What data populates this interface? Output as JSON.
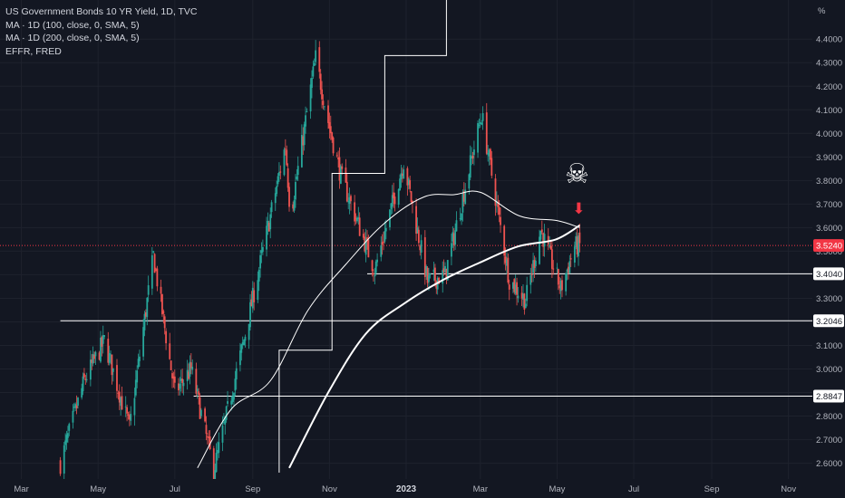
{
  "legend": {
    "title": "US Government Bonds 10 YR Yield, 1D, TVC",
    "ma100": "MA · 1D (100, close, 0, SMA, 5)",
    "ma200": "MA · 1D (200, close, 0, SMA, 5)",
    "effr": "EFFR, FRED"
  },
  "colors": {
    "background": "#131722",
    "up": "#26a69a",
    "down": "#ef5350",
    "line": "#ffffff",
    "grid": "#1e222d",
    "axis_text": "#b2b5be",
    "price_tag": "#f23645",
    "arrow": "#f23645"
  },
  "annotations": {
    "skull": "☠",
    "arrow": "⬇"
  },
  "chart_data": {
    "type": "candlestick",
    "title": "US Government Bonds 10 YR Yield, 1D, TVC",
    "y_unit": "%",
    "ylim": [
      2.56,
      4.52
    ],
    "x_range": [
      "2022-02-12",
      "2023-11-20"
    ],
    "x_ticks": [
      {
        "date": "2022-03-01",
        "label": "Mar"
      },
      {
        "date": "2022-05-01",
        "label": "May"
      },
      {
        "date": "2022-07-01",
        "label": "Jul"
      },
      {
        "date": "2022-09-01",
        "label": "Sep"
      },
      {
        "date": "2022-11-01",
        "label": "Nov"
      },
      {
        "date": "2023-01-01",
        "label": "2023",
        "bold": true
      },
      {
        "date": "2023-03-01",
        "label": "Mar"
      },
      {
        "date": "2023-05-01",
        "label": "May"
      },
      {
        "date": "2023-07-01",
        "label": "Jul"
      },
      {
        "date": "2023-09-01",
        "label": "Sep"
      },
      {
        "date": "2023-11-01",
        "label": "Nov"
      }
    ],
    "y_ticks": [
      {
        "value": 2.6,
        "label": "2.6000"
      },
      {
        "value": 2.7,
        "label": "2.7000"
      },
      {
        "value": 2.8,
        "label": "2.8000"
      },
      {
        "value": 2.9,
        "label": "2.9000"
      },
      {
        "value": 3.0,
        "label": "3.0000"
      },
      {
        "value": 3.1,
        "label": "3.1000"
      },
      {
        "value": 3.2,
        "label": "3.2000"
      },
      {
        "value": 3.3,
        "label": "3.3000"
      },
      {
        "value": 3.4,
        "label": "3.4000"
      },
      {
        "value": 3.5,
        "label": "3.5000"
      },
      {
        "value": 3.6,
        "label": "3.6000"
      },
      {
        "value": 3.7,
        "label": "3.7000"
      },
      {
        "value": 3.8,
        "label": "3.8000"
      },
      {
        "value": 3.9,
        "label": "3.9000"
      },
      {
        "value": 4.0,
        "label": "4.0000"
      },
      {
        "value": 4.1,
        "label": "4.1000"
      },
      {
        "value": 4.2,
        "label": "4.2000"
      },
      {
        "value": 4.3,
        "label": "4.3000"
      },
      {
        "value": 4.4,
        "label": "4.4000"
      }
    ],
    "y_axis_unit_label": "%",
    "last_price": {
      "value": 3.524,
      "label": "3.5240"
    },
    "price_path": [
      {
        "date": "2022-04-01",
        "value": 2.6
      },
      {
        "date": "2022-04-20",
        "value": 2.95
      },
      {
        "date": "2022-05-06",
        "value": 3.12
      },
      {
        "date": "2022-05-26",
        "value": 2.75
      },
      {
        "date": "2022-06-14",
        "value": 3.48
      },
      {
        "date": "2022-07-01",
        "value": 2.9
      },
      {
        "date": "2022-07-14",
        "value": 3.0
      },
      {
        "date": "2022-08-01",
        "value": 2.57
      },
      {
        "date": "2022-08-24",
        "value": 3.1
      },
      {
        "date": "2022-09-27",
        "value": 3.95
      },
      {
        "date": "2022-10-01",
        "value": 3.65
      },
      {
        "date": "2022-10-21",
        "value": 4.32
      },
      {
        "date": "2022-10-31",
        "value": 4.05
      },
      {
        "date": "2022-11-10",
        "value": 3.82
      },
      {
        "date": "2022-12-07",
        "value": 3.42
      },
      {
        "date": "2022-12-30",
        "value": 3.88
      },
      {
        "date": "2023-01-18",
        "value": 3.37
      },
      {
        "date": "2023-02-01",
        "value": 3.4
      },
      {
        "date": "2023-03-02",
        "value": 4.08
      },
      {
        "date": "2023-03-24",
        "value": 3.38
      },
      {
        "date": "2023-04-06",
        "value": 3.29
      },
      {
        "date": "2023-04-18",
        "value": 3.59
      },
      {
        "date": "2023-05-04",
        "value": 3.34
      },
      {
        "date": "2023-05-15",
        "value": 3.52
      },
      {
        "date": "2023-05-19",
        "value": 3.524
      }
    ],
    "ma100_path": [
      {
        "date": "2022-07-19",
        "value": 2.58
      },
      {
        "date": "2022-08-15",
        "value": 2.83
      },
      {
        "date": "2022-09-15",
        "value": 2.95
      },
      {
        "date": "2022-10-15",
        "value": 3.25
      },
      {
        "date": "2022-11-15",
        "value": 3.45
      },
      {
        "date": "2022-12-15",
        "value": 3.62
      },
      {
        "date": "2023-01-15",
        "value": 3.73
      },
      {
        "date": "2023-02-08",
        "value": 3.74
      },
      {
        "date": "2023-03-01",
        "value": 3.75
      },
      {
        "date": "2023-04-01",
        "value": 3.65
      },
      {
        "date": "2023-05-01",
        "value": 3.63
      },
      {
        "date": "2023-05-19",
        "value": 3.6
      }
    ],
    "ma200_path": [
      {
        "date": "2022-09-30",
        "value": 2.58
      },
      {
        "date": "2022-10-31",
        "value": 2.9
      },
      {
        "date": "2022-11-30",
        "value": 3.15
      },
      {
        "date": "2022-12-31",
        "value": 3.28
      },
      {
        "date": "2023-01-31",
        "value": 3.38
      },
      {
        "date": "2023-02-28",
        "value": 3.45
      },
      {
        "date": "2023-03-31",
        "value": 3.52
      },
      {
        "date": "2023-04-30",
        "value": 3.55
      },
      {
        "date": "2023-05-19",
        "value": 3.61
      }
    ],
    "effr_steps": [
      {
        "date": "2022-09-22",
        "value": 2.56
      },
      {
        "date": "2022-09-22",
        "value": 3.08
      },
      {
        "date": "2022-11-03",
        "value": 3.08
      },
      {
        "date": "2022-11-03",
        "value": 3.83
      },
      {
        "date": "2022-12-15",
        "value": 3.83
      },
      {
        "date": "2022-12-15",
        "value": 4.33
      },
      {
        "date": "2023-02-02",
        "value": 4.33
      },
      {
        "date": "2023-02-02",
        "value": 4.58
      }
    ],
    "horizontal_levels": [
      {
        "value": 3.404,
        "label": "3.4040",
        "from": "2022-12-01"
      },
      {
        "value": 3.2046,
        "label": "3.2046",
        "from": "2022-04-01"
      },
      {
        "value": 2.8847,
        "label": "2.8847",
        "from": "2022-07-16"
      }
    ]
  }
}
